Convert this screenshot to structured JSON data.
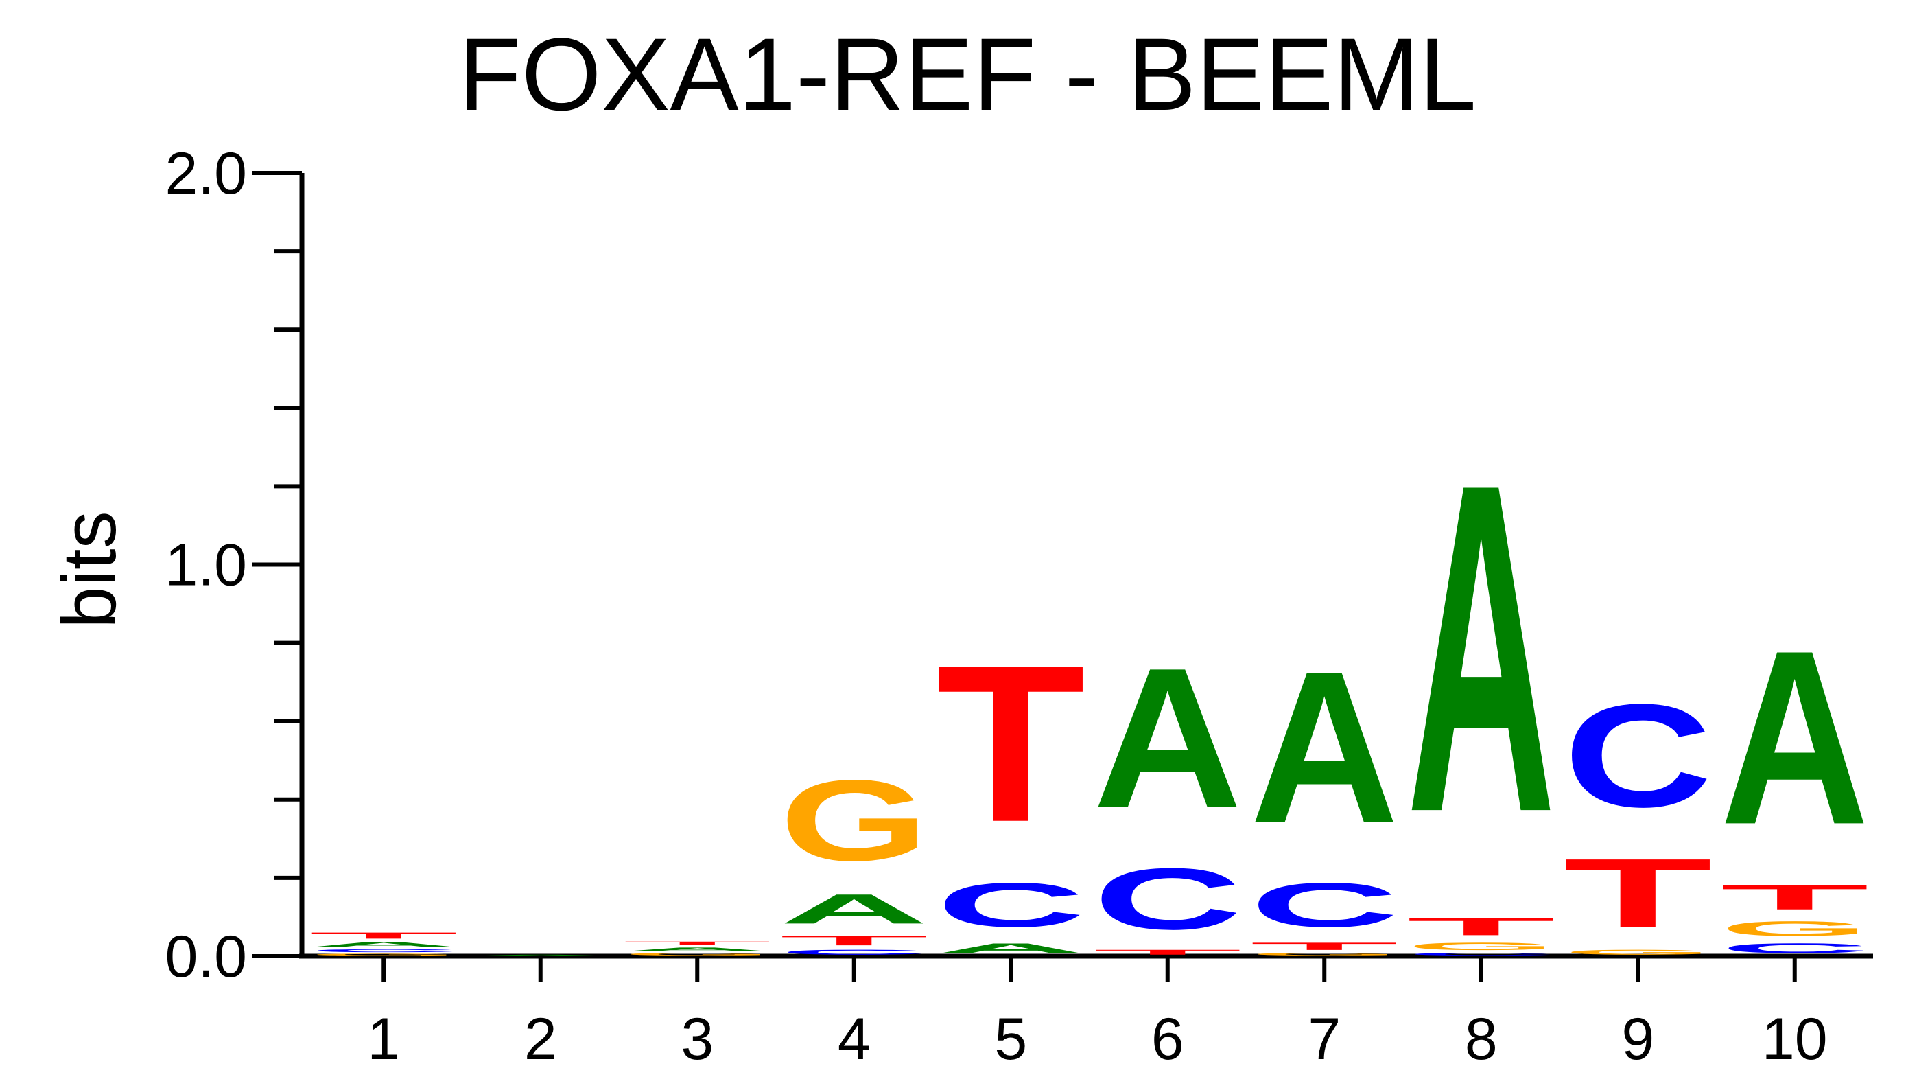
{
  "chart_data": {
    "type": "sequence-logo",
    "title": "FOXA1-REF - BEEML",
    "ylabel": "bits",
    "xlabel": "",
    "ylim": [
      0,
      2
    ],
    "y_ticks": [
      {
        "value": 0,
        "label": "0.0"
      },
      {
        "value": 1,
        "label": "1.0"
      },
      {
        "value": 2,
        "label": "2.0"
      }
    ],
    "y_minor_step": 0.2,
    "colors": {
      "A": "#008000",
      "C": "#0000ff",
      "G": "#ffa500",
      "T": "#ff0000"
    },
    "positions": [
      {
        "label": "1",
        "letters": [
          {
            "base": "G",
            "bits": 0.008
          },
          {
            "base": "C",
            "bits": 0.012
          },
          {
            "base": "A",
            "bits": 0.02
          },
          {
            "base": "T",
            "bits": 0.025
          }
        ]
      },
      {
        "label": "2",
        "letters": [
          {
            "base": "A",
            "bits": 0.005
          }
        ]
      },
      {
        "label": "3",
        "letters": [
          {
            "base": "G",
            "bits": 0.01
          },
          {
            "base": "A",
            "bits": 0.015
          },
          {
            "base": "T",
            "bits": 0.015
          }
        ]
      },
      {
        "label": "4",
        "letters": [
          {
            "base": "C",
            "bits": 0.02
          },
          {
            "base": "T",
            "bits": 0.04
          },
          {
            "base": "A",
            "bits": 0.12
          },
          {
            "base": "G",
            "bits": 0.33
          }
        ]
      },
      {
        "label": "5",
        "letters": [
          {
            "base": "A",
            "bits": 0.04
          },
          {
            "base": "C",
            "bits": 0.18
          },
          {
            "base": "T",
            "bits": 0.64
          }
        ]
      },
      {
        "label": "6",
        "letters": [
          {
            "base": "T",
            "bits": 0.02
          },
          {
            "base": "C",
            "bits": 0.25
          },
          {
            "base": "A",
            "bits": 0.57
          }
        ]
      },
      {
        "label": "7",
        "letters": [
          {
            "base": "G",
            "bits": 0.01
          },
          {
            "base": "T",
            "bits": 0.03
          },
          {
            "base": "C",
            "bits": 0.18
          },
          {
            "base": "A",
            "bits": 0.62
          }
        ]
      },
      {
        "label": "8",
        "letters": [
          {
            "base": "C",
            "bits": 0.01
          },
          {
            "base": "G",
            "bits": 0.03
          },
          {
            "base": "T",
            "bits": 0.07
          },
          {
            "base": "A",
            "bits": 1.34
          }
        ]
      },
      {
        "label": "9",
        "letters": [
          {
            "base": "G",
            "bits": 0.02
          },
          {
            "base": "T",
            "bits": 0.28
          },
          {
            "base": "C",
            "bits": 0.42
          }
        ]
      },
      {
        "label": "10",
        "letters": [
          {
            "base": "C",
            "bits": 0.04
          },
          {
            "base": "G",
            "bits": 0.06
          },
          {
            "base": "T",
            "bits": 0.1
          },
          {
            "base": "A",
            "bits": 0.71
          }
        ]
      }
    ]
  }
}
